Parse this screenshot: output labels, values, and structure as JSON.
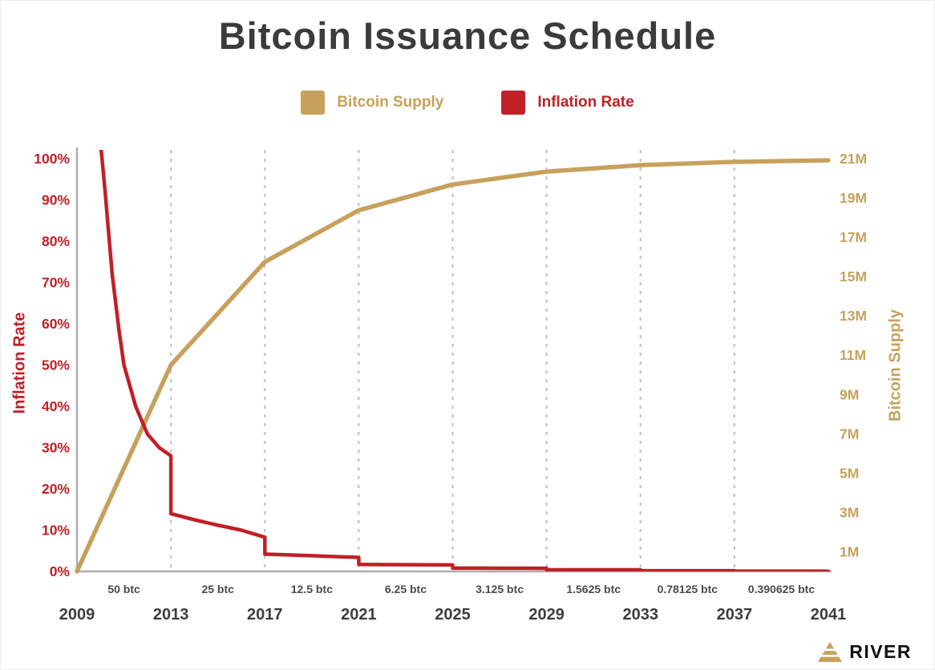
{
  "title": "Bitcoin Issuance Schedule",
  "legend": [
    {
      "label": "Bitcoin Supply",
      "color": "#C7A15C"
    },
    {
      "label": "Inflation Rate",
      "color": "#C02026"
    }
  ],
  "axes": {
    "left_title": "Inflation Rate",
    "right_title": "Bitcoin Supply"
  },
  "logo": {
    "text": "RIVER"
  },
  "chart_data": {
    "type": "line",
    "title": "Bitcoin Issuance Schedule",
    "x_range": [
      2009,
      2041
    ],
    "x_ticks": [
      2009,
      2013,
      2017,
      2021,
      2025,
      2029,
      2033,
      2037,
      2041
    ],
    "left_axis": {
      "label": "Inflation Rate",
      "unit": "%",
      "range": [
        0,
        100
      ],
      "ticks": [
        100,
        90,
        80,
        70,
        60,
        50,
        40,
        30,
        20,
        10,
        0
      ],
      "tick_labels": [
        "100%",
        "90%",
        "80%",
        "70%",
        "60%",
        "50%",
        "40%",
        "30%",
        "20%",
        "10%",
        "0%"
      ],
      "color": "#C02026"
    },
    "right_axis": {
      "label": "Bitcoin Supply",
      "unit": "M BTC",
      "range": [
        0,
        21
      ],
      "ticks": [
        21,
        19,
        17,
        15,
        13,
        11,
        9,
        7,
        5,
        3,
        1
      ],
      "tick_labels": [
        "21M",
        "19M",
        "17M",
        "15M",
        "13M",
        "11M",
        "9M",
        "7M",
        "5M",
        "3M",
        "1M"
      ],
      "color": "#C7A15C"
    },
    "grid": "vertical-dashed",
    "legend_position": "top",
    "halving_years": [
      2013,
      2017,
      2021,
      2025,
      2029,
      2033,
      2037
    ],
    "reward_labels": [
      {
        "label": "50 btc",
        "from": 2009,
        "to": 2013
      },
      {
        "label": "25 btc",
        "from": 2013,
        "to": 2017
      },
      {
        "label": "12.5 btc",
        "from": 2017,
        "to": 2021
      },
      {
        "label": "6.25 btc",
        "from": 2021,
        "to": 2025
      },
      {
        "label": "3.125 btc",
        "from": 2025,
        "to": 2029
      },
      {
        "label": "1.5625 btc",
        "from": 2029,
        "to": 2033
      },
      {
        "label": "0.78125 btc",
        "from": 2033,
        "to": 2037
      },
      {
        "label": "0.390625 btc",
        "from": 2037,
        "to": 2041
      }
    ],
    "series": [
      {
        "name": "Bitcoin Supply",
        "axis": "right",
        "color": "#C7A15C",
        "units": "millions of BTC",
        "points": [
          [
            2009,
            0
          ],
          [
            2010,
            2.625
          ],
          [
            2011,
            5.25
          ],
          [
            2012,
            7.875
          ],
          [
            2013,
            10.5
          ],
          [
            2014,
            11.813
          ],
          [
            2015,
            13.125
          ],
          [
            2016,
            14.438
          ],
          [
            2017,
            15.75
          ],
          [
            2018,
            16.406
          ],
          [
            2019,
            17.063
          ],
          [
            2020,
            17.719
          ],
          [
            2021,
            18.375
          ],
          [
            2022,
            18.703
          ],
          [
            2023,
            19.031
          ],
          [
            2024,
            19.359
          ],
          [
            2025,
            19.688
          ],
          [
            2026,
            19.852
          ],
          [
            2027,
            20.016
          ],
          [
            2028,
            20.18
          ],
          [
            2029,
            20.344
          ],
          [
            2030,
            20.426
          ],
          [
            2031,
            20.508
          ],
          [
            2032,
            20.59
          ],
          [
            2033,
            20.672
          ],
          [
            2034,
            20.713
          ],
          [
            2035,
            20.754
          ],
          [
            2036,
            20.795
          ],
          [
            2037,
            20.836
          ],
          [
            2038,
            20.857
          ],
          [
            2039,
            20.877
          ],
          [
            2040,
            20.898
          ],
          [
            2041,
            20.918
          ]
        ]
      },
      {
        "name": "Inflation Rate",
        "axis": "left",
        "color": "#C02026",
        "units": "percent",
        "points": [
          [
            2009.8,
            130
          ],
          [
            2010,
            104
          ],
          [
            2010.2,
            92
          ],
          [
            2010.5,
            72
          ],
          [
            2010.8,
            58
          ],
          [
            2011,
            50
          ],
          [
            2011.5,
            40
          ],
          [
            2012,
            33.3
          ],
          [
            2012.5,
            30
          ],
          [
            2013,
            28
          ],
          [
            2013,
            14
          ],
          [
            2014,
            12.5
          ],
          [
            2015,
            11.2
          ],
          [
            2016,
            10
          ],
          [
            2017,
            8.3
          ],
          [
            2017,
            4.2
          ],
          [
            2018,
            4
          ],
          [
            2019,
            3.8
          ],
          [
            2020,
            3.6
          ],
          [
            2021,
            3.4
          ],
          [
            2021,
            1.7
          ],
          [
            2022,
            1.66
          ],
          [
            2023,
            1.63
          ],
          [
            2024,
            1.61
          ],
          [
            2025,
            1.58
          ],
          [
            2025,
            0.8
          ],
          [
            2026,
            0.79
          ],
          [
            2027,
            0.78
          ],
          [
            2028,
            0.77
          ],
          [
            2029,
            0.76
          ],
          [
            2029,
            0.4
          ],
          [
            2031,
            0.39
          ],
          [
            2033,
            0.38
          ],
          [
            2033,
            0.19
          ],
          [
            2035,
            0.18
          ],
          [
            2037,
            0.17
          ],
          [
            2037,
            0.09
          ],
          [
            2039,
            0.08
          ],
          [
            2041,
            0.05
          ]
        ]
      }
    ]
  }
}
